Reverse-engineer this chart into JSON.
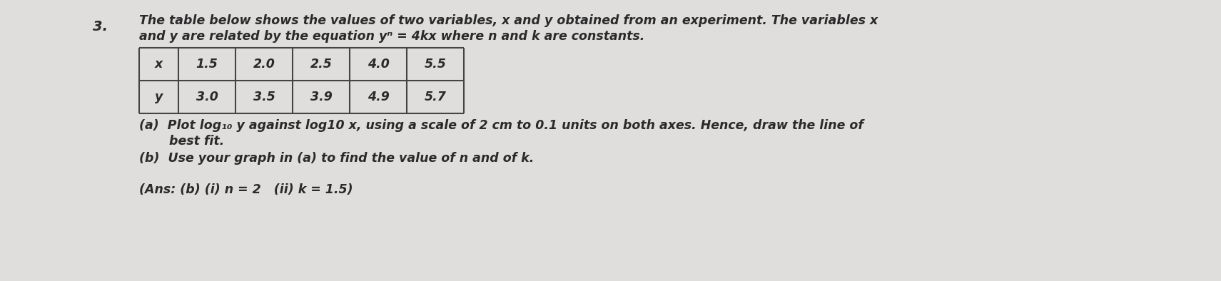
{
  "question_number": "3.",
  "intro_line1": "The table below shows the values of two variables, x and y obtained from an experiment. The variables x",
  "intro_line2": "and y are related by the equation yⁿ = 4kx where n and k are constants.",
  "table_headers": [
    "x",
    "1.5",
    "2.0",
    "2.5",
    "4.0",
    "5.5"
  ],
  "table_row_y": [
    "y",
    "3.0",
    "3.5",
    "3.9",
    "4.9",
    "5.7"
  ],
  "part_a_line1": "(a)  Plot log₁₀ y against log10 x, using a scale of 2 cm to 0.1 units on both axes. Hence, draw the line of",
  "part_a_line2": "       best fit.",
  "part_b": "(b)  Use your graph in (a) to find the value of n and of k.",
  "answer": "(Ans: (b) (i) n = 2   (ii) k = 1.5)",
  "bg_color": "#e0dedd",
  "text_color": "#2a2a2a",
  "table_border_color": "#444444"
}
